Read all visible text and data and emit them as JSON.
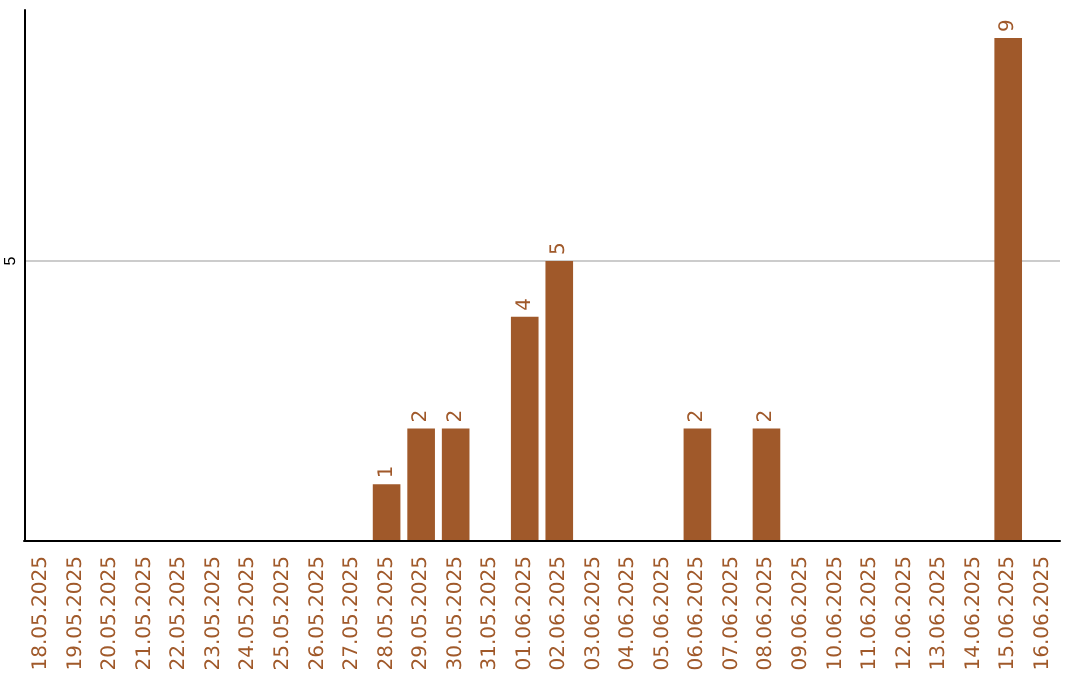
{
  "chart_data": {
    "type": "bar",
    "categories": [
      "18.05.2025",
      "19.05.2025",
      "20.05.2025",
      "21.05.2025",
      "22.05.2025",
      "23.05.2025",
      "24.05.2025",
      "25.05.2025",
      "26.05.2025",
      "27.05.2025",
      "28.05.2025",
      "29.05.2025",
      "30.05.2025",
      "31.05.2025",
      "01.06.2025",
      "02.06.2025",
      "03.06.2025",
      "04.06.2025",
      "05.06.2025",
      "06.06.2025",
      "07.06.2025",
      "08.06.2025",
      "09.06.2025",
      "10.06.2025",
      "11.06.2025",
      "12.06.2025",
      "13.06.2025",
      "14.06.2025",
      "15.06.2025",
      "16.06.2025"
    ],
    "values": [
      0,
      0,
      0,
      0,
      0,
      0,
      0,
      0,
      0,
      0,
      1,
      2,
      2,
      0,
      4,
      5,
      0,
      0,
      0,
      2,
      0,
      2,
      0,
      0,
      0,
      0,
      0,
      0,
      9,
      0
    ],
    "color": "#a0592a",
    "ylim": [
      0,
      9.5
    ],
    "yticks": [
      5
    ],
    "grid": "y",
    "value_labels": [
      null,
      null,
      null,
      null,
      null,
      null,
      null,
      null,
      null,
      null,
      "1",
      "2",
      "2",
      null,
      "4",
      "5",
      null,
      null,
      null,
      "2",
      null,
      "2",
      null,
      null,
      null,
      null,
      null,
      null,
      "9",
      null
    ]
  }
}
